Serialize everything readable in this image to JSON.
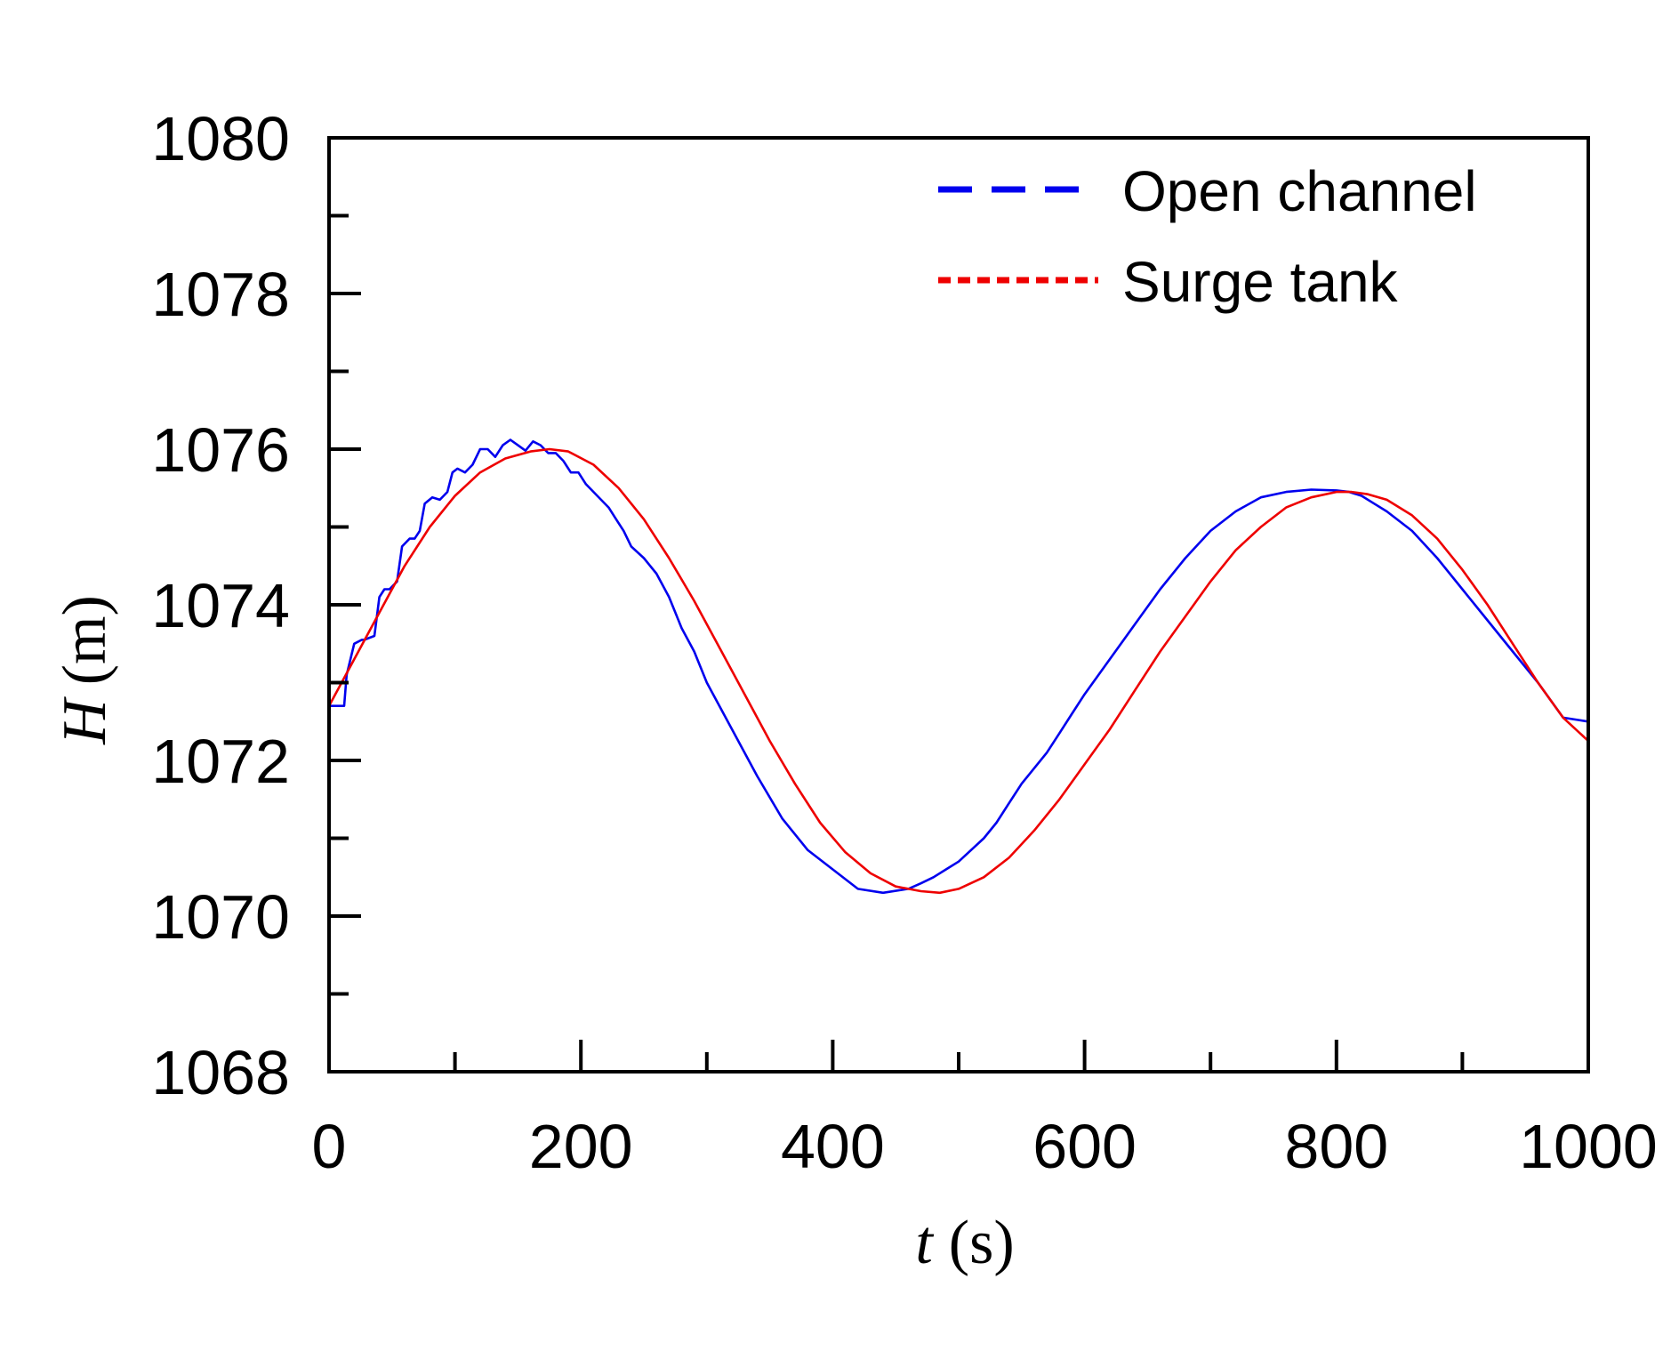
{
  "chart_data": {
    "type": "line",
    "title": "",
    "xlabel": {
      "symbol": "t",
      "unit": "(s)"
    },
    "ylabel": {
      "symbol": "H",
      "unit": "(m)"
    },
    "xlim": [
      0,
      1000
    ],
    "ylim": [
      1068,
      1080
    ],
    "xticks": [
      0,
      200,
      400,
      600,
      800,
      1000
    ],
    "xminor": [
      100,
      300,
      500,
      700,
      900
    ],
    "yticks": [
      1068,
      1070,
      1072,
      1074,
      1076,
      1078,
      1080
    ],
    "yminor": [
      1069,
      1071,
      1073,
      1075,
      1077,
      1079
    ],
    "grid": false,
    "legend_position": "top-right",
    "series": [
      {
        "name": "Open channel",
        "color": "#0000ee",
        "style": "long-dash",
        "x": [
          0,
          12,
          14,
          20,
          26,
          28,
          36,
          40,
          44,
          48,
          54,
          58,
          64,
          68,
          72,
          76,
          82,
          88,
          94,
          98,
          102,
          108,
          114,
          120,
          126,
          132,
          138,
          144,
          150,
          156,
          162,
          168,
          174,
          180,
          186,
          192,
          198,
          204,
          210,
          216,
          222,
          228,
          234,
          240,
          250,
          260,
          270,
          280,
          290,
          300,
          320,
          340,
          360,
          380,
          400,
          420,
          440,
          460,
          470,
          480,
          490,
          500,
          510,
          520,
          530,
          540,
          550,
          560,
          570,
          580,
          590,
          600,
          620,
          640,
          660,
          680,
          700,
          720,
          740,
          760,
          780,
          800,
          810,
          820,
          830,
          840,
          860,
          880,
          900,
          920,
          940,
          960,
          980,
          1000
        ],
        "y": [
          1072.7,
          1072.7,
          1073.1,
          1073.5,
          1073.55,
          1073.55,
          1073.6,
          1074.1,
          1074.2,
          1074.2,
          1074.3,
          1074.75,
          1074.85,
          1074.85,
          1074.95,
          1075.3,
          1075.38,
          1075.35,
          1075.45,
          1075.7,
          1075.75,
          1075.7,
          1075.8,
          1076.0,
          1076.0,
          1075.9,
          1076.05,
          1076.12,
          1076.05,
          1075.98,
          1076.1,
          1076.05,
          1075.95,
          1075.95,
          1075.85,
          1075.7,
          1075.7,
          1075.55,
          1075.45,
          1075.35,
          1075.25,
          1075.1,
          1074.95,
          1074.75,
          1074.6,
          1074.4,
          1074.1,
          1073.7,
          1073.4,
          1073.0,
          1072.4,
          1071.8,
          1071.25,
          1070.85,
          1070.6,
          1070.35,
          1070.3,
          1070.35,
          1070.42,
          1070.5,
          1070.6,
          1070.7,
          1070.85,
          1071.0,
          1071.2,
          1071.45,
          1071.7,
          1071.9,
          1072.1,
          1072.35,
          1072.6,
          1072.85,
          1073.3,
          1073.75,
          1074.2,
          1074.6,
          1074.95,
          1075.2,
          1075.38,
          1075.45,
          1075.48,
          1075.47,
          1075.45,
          1075.4,
          1075.3,
          1075.2,
          1074.95,
          1074.6,
          1074.2,
          1073.8,
          1073.4,
          1073.0,
          1072.55,
          1072.5
        ]
      },
      {
        "name": "Surge tank",
        "color": "#ee0000",
        "style": "dotted",
        "x": [
          0,
          20,
          40,
          60,
          80,
          100,
          120,
          140,
          160,
          175,
          190,
          210,
          230,
          250,
          270,
          290,
          310,
          330,
          350,
          370,
          390,
          410,
          430,
          450,
          470,
          485,
          500,
          520,
          540,
          560,
          580,
          600,
          620,
          640,
          660,
          680,
          700,
          720,
          740,
          760,
          780,
          800,
          812,
          825,
          840,
          860,
          880,
          900,
          920,
          940,
          960,
          980,
          1000
        ],
        "y": [
          1072.7,
          1073.3,
          1073.9,
          1074.5,
          1075.0,
          1075.4,
          1075.7,
          1075.88,
          1075.97,
          1076.0,
          1075.97,
          1075.8,
          1075.5,
          1075.1,
          1074.6,
          1074.05,
          1073.45,
          1072.85,
          1072.25,
          1071.7,
          1071.2,
          1070.82,
          1070.55,
          1070.38,
          1070.32,
          1070.3,
          1070.35,
          1070.5,
          1070.75,
          1071.1,
          1071.5,
          1071.95,
          1072.4,
          1072.9,
          1073.4,
          1073.85,
          1074.3,
          1074.7,
          1075.0,
          1075.25,
          1075.38,
          1075.45,
          1075.45,
          1075.42,
          1075.35,
          1075.15,
          1074.85,
          1074.45,
          1074.0,
          1073.5,
          1073.0,
          1072.55,
          1072.25
        ]
      }
    ]
  }
}
